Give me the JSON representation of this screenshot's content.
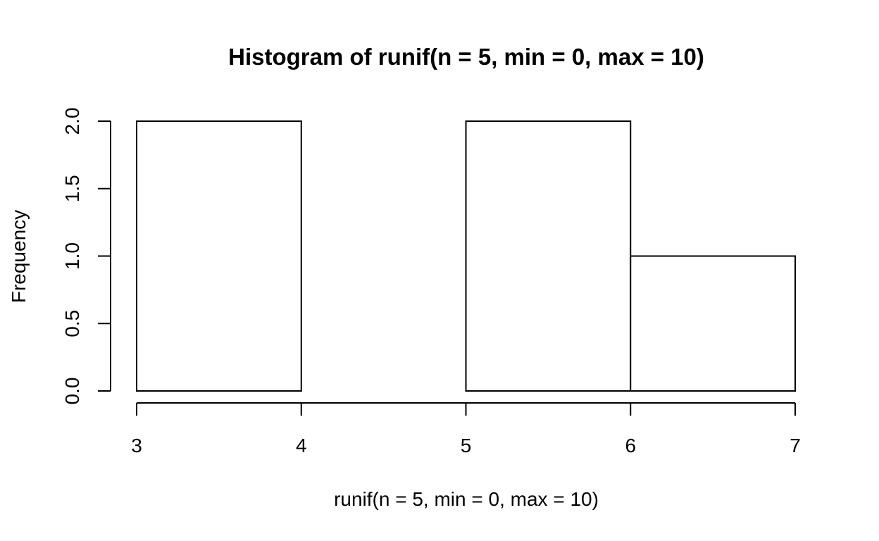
{
  "chart_data": {
    "type": "bar",
    "title": "Histogram of runif(n = 5, min = 0, max = 10)",
    "xlabel": "runif(n = 5, min = 0, max = 10)",
    "ylabel": "Frequency",
    "bins": [
      {
        "x0": 3,
        "x1": 4,
        "count": 2
      },
      {
        "x0": 4,
        "x1": 5,
        "count": 0
      },
      {
        "x0": 5,
        "x1": 6,
        "count": 2
      },
      {
        "x0": 6,
        "x1": 7,
        "count": 1
      }
    ],
    "xlim": [
      3,
      7
    ],
    "ylim": [
      0,
      2
    ],
    "x_ticks": [
      3,
      4,
      5,
      6,
      7
    ],
    "x_tick_labels": [
      "3",
      "4",
      "5",
      "6",
      "7"
    ],
    "y_ticks": [
      0,
      0.5,
      1,
      1.5,
      2
    ],
    "y_tick_labels": [
      "0.0",
      "0.5",
      "1.0",
      "1.5",
      "2.0"
    ],
    "grid": false,
    "legend": "none",
    "bar_fill": "#ffffff",
    "bar_stroke": "#000000"
  }
}
